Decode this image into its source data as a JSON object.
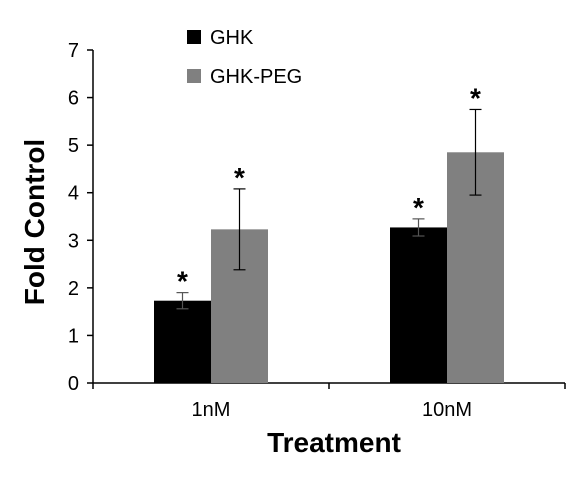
{
  "chart_data": {
    "type": "bar",
    "title": "",
    "xlabel": "Treatment",
    "ylabel": "Fold Control",
    "categories": [
      "1nM",
      "10nM"
    ],
    "ylim": [
      0,
      7
    ],
    "yticks": [
      0,
      1,
      2,
      3,
      4,
      5,
      6,
      7
    ],
    "grid": false,
    "legend_position": "top-left",
    "series": [
      {
        "name": "GHK",
        "color": "#000000",
        "values": [
          1.73,
          3.27
        ],
        "errors": [
          0.17,
          0.18
        ],
        "significance": [
          "*",
          "*"
        ]
      },
      {
        "name": "GHK-PEG",
        "color": "#808080",
        "values": [
          3.23,
          4.85
        ],
        "errors": [
          0.85,
          0.9
        ],
        "significance": [
          "*",
          "*"
        ]
      }
    ]
  }
}
